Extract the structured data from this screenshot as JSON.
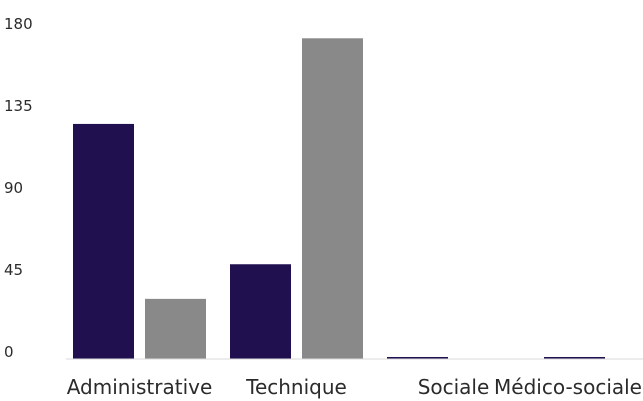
{
  "chart_data": {
    "type": "bar",
    "categories": [
      "Administrative",
      "Technique",
      "Sociale",
      "Médico-sociale"
    ],
    "series": [
      {
        "values": [
          129,
          52,
          1,
          1
        ],
        "color": "#20104f"
      },
      {
        "values": [
          33,
          176,
          0,
          0
        ],
        "color": "#898989"
      }
    ],
    "yticks": [
      0,
      45,
      90,
      135,
      180
    ],
    "ylim": [
      0,
      180
    ],
    "grid": false,
    "baseline_color": "#d9d9d9"
  }
}
